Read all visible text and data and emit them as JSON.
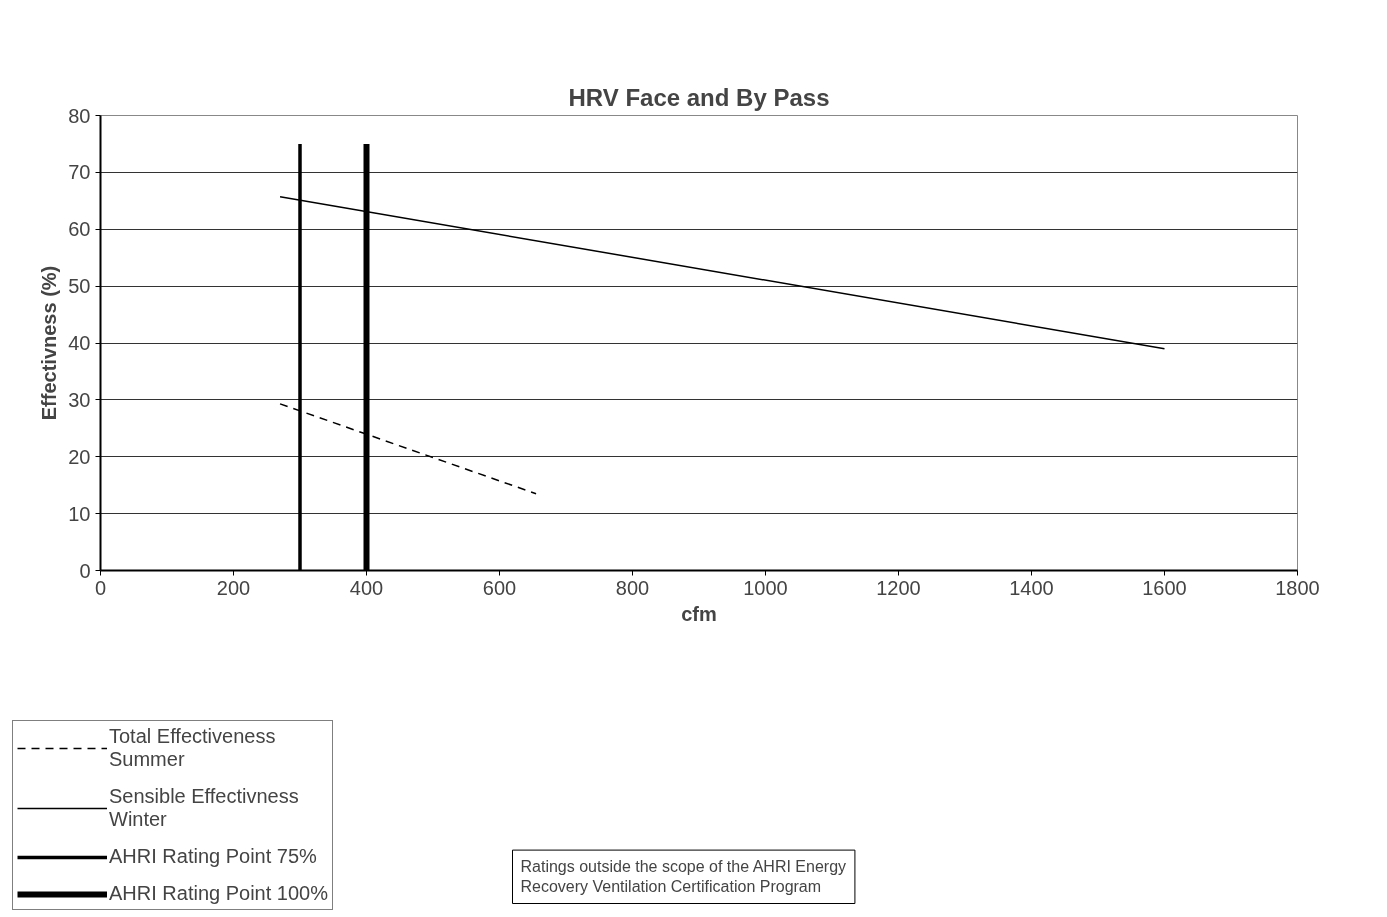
{
  "chart_data": {
    "type": "line",
    "title": "HRV Face and By Pass",
    "xlabel": "cfm",
    "ylabel": "Effectivness (%)",
    "xlim": [
      0,
      1800
    ],
    "xticks": [
      0,
      200,
      400,
      600,
      800,
      1000,
      1200,
      1400,
      1600,
      1800
    ],
    "ylim": [
      0,
      80
    ],
    "yticks": [
      0,
      10,
      20,
      30,
      40,
      50,
      60,
      70,
      80
    ],
    "grid": "y",
    "legend": "bottom left",
    "marker": "none",
    "series": [
      {
        "name": "Total Effectiveness\nSummer",
        "color": "#000000",
        "line_style": "dashed",
        "x": [
          270,
          655
        ],
        "values": [
          29.3,
          13.5
        ]
      },
      {
        "name": "Sensible Effectivness\nWinter",
        "color": "#000000",
        "line_style": "solid",
        "x": [
          270,
          1600
        ],
        "values": [
          65.7,
          39
        ]
      },
      {
        "name": "AHRI Rating Point 75%",
        "color": "#000000",
        "line_style": "solid",
        "x": [
          300,
          300
        ],
        "values": [
          0,
          75
        ]
      },
      {
        "name": "AHRI Rating Point 100%",
        "color": "#000000",
        "line_style": "solid",
        "x": [
          400,
          400
        ],
        "values": [
          0,
          75
        ]
      }
    ],
    "annotations": [
      "Ratings outside the scope of the AHRI Energy\nRecovery Ventilation Certification Program"
    ]
  }
}
